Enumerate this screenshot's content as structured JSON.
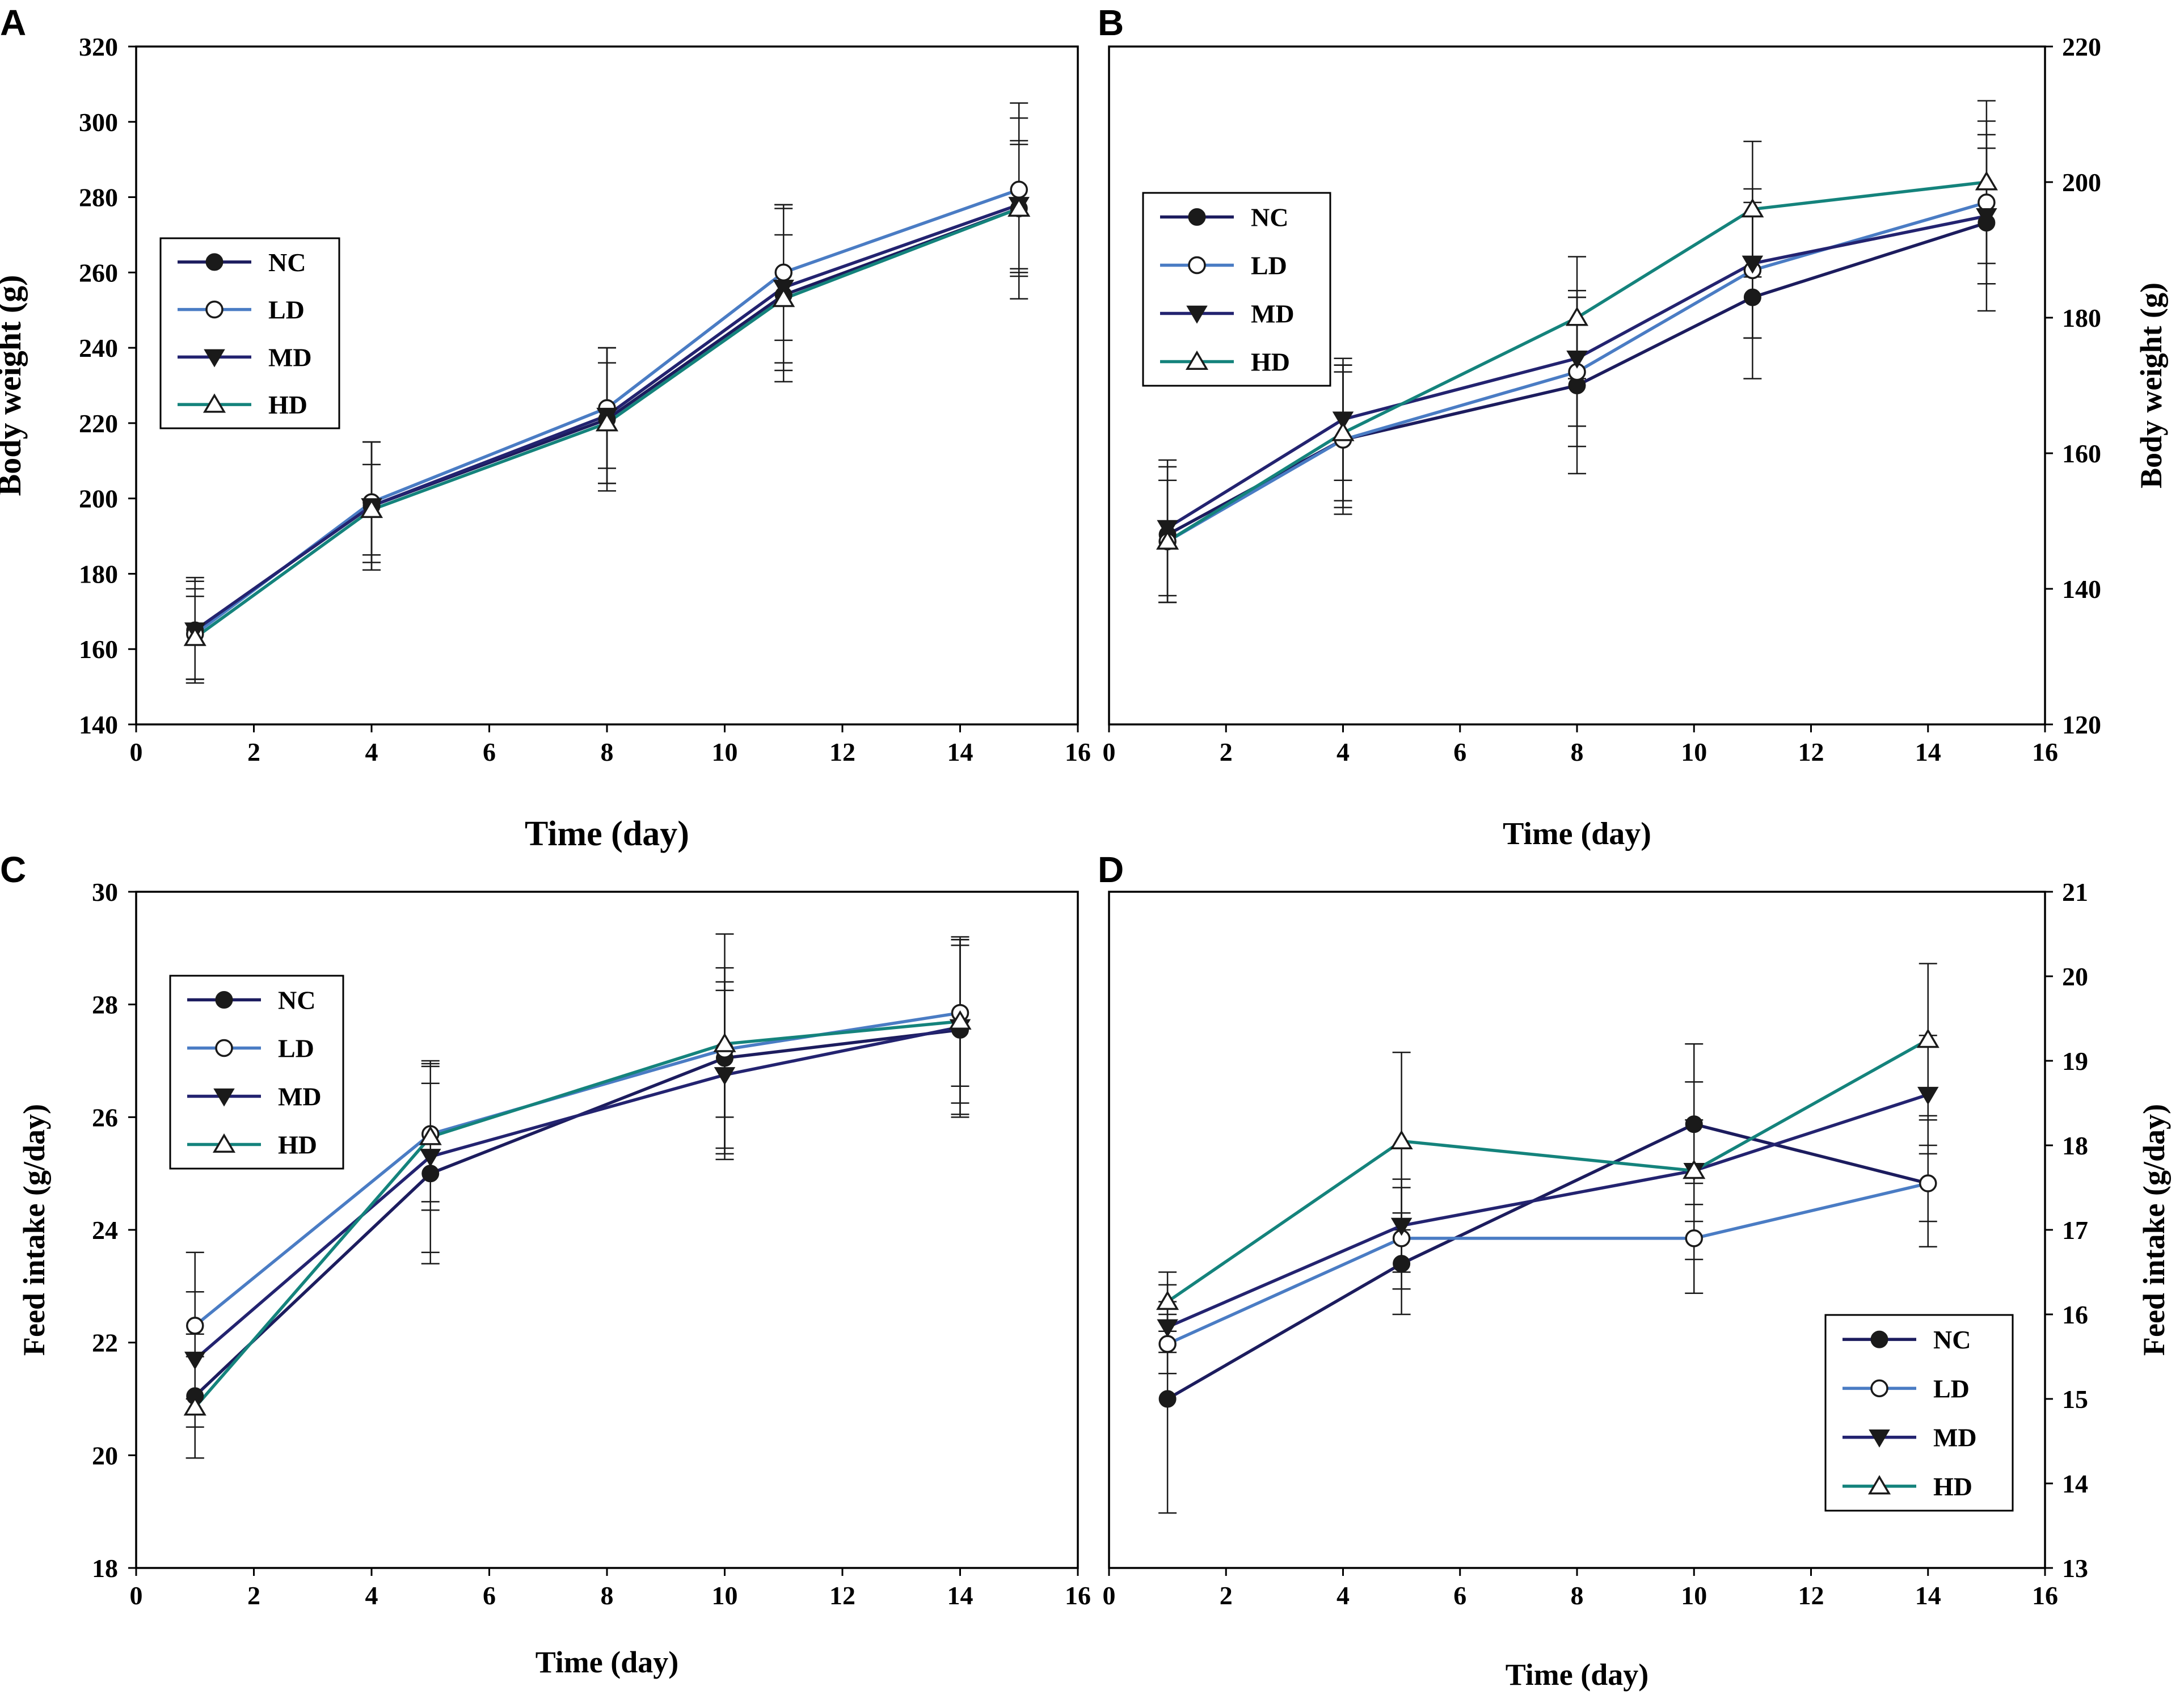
{
  "figure": {
    "colors": {
      "NC": "#1c1c5e",
      "LD": "#4a7cc4",
      "MD": "#232370",
      "HD": "#14837c"
    },
    "markers": {
      "NC": "filled-circle",
      "LD": "open-circle",
      "MD": "filled-triangle-down",
      "HD": "open-triangle-up"
    }
  },
  "chart_data": [
    {
      "panel": "A",
      "type": "line",
      "xlabel": "Time (day)",
      "ylabel": "Body weight (g)",
      "xlim": [
        0,
        16
      ],
      "ylim": [
        140,
        320
      ],
      "xticks": [
        "0",
        "2",
        "4",
        "6",
        "8",
        "10",
        "12",
        "14",
        "16"
      ],
      "yticks": [
        "140",
        "160",
        "180",
        "200",
        "220",
        "240",
        "260",
        "280",
        "300",
        "320"
      ],
      "legend_position": "upper-left",
      "x": [
        1,
        4,
        8,
        11,
        15
      ],
      "series": [
        {
          "name": "NC",
          "values": [
            165,
            198,
            221,
            254,
            277
          ],
          "errors": [
            13,
            17,
            19,
            23,
            24
          ]
        },
        {
          "name": "LD",
          "values": [
            164,
            199,
            224,
            260,
            282
          ],
          "errors": [
            12,
            16,
            16,
            18,
            23
          ]
        },
        {
          "name": "MD",
          "values": [
            165,
            198,
            222,
            256,
            278
          ],
          "errors": [
            14,
            17,
            18,
            22,
            17
          ]
        },
        {
          "name": "HD",
          "values": [
            163,
            197,
            220,
            253,
            277
          ],
          "errors": [
            11,
            12,
            16,
            17,
            17
          ]
        }
      ]
    },
    {
      "panel": "B",
      "type": "line",
      "xlabel": "Time (day)",
      "ylabel": "Body weight (g)",
      "xlim": [
        0,
        16
      ],
      "ylim": [
        120,
        220
      ],
      "xticks": [
        "0",
        "2",
        "4",
        "6",
        "8",
        "10",
        "12",
        "14",
        "16"
      ],
      "yticks": [
        "120",
        "140",
        "160",
        "180",
        "200",
        "220"
      ],
      "legend_position": "upper-left",
      "x": [
        1,
        4,
        8,
        11,
        15
      ],
      "series": [
        {
          "name": "NC",
          "values": [
            148,
            162,
            170,
            183,
            194
          ],
          "errors": [
            10,
            11,
            13,
            12,
            13
          ]
        },
        {
          "name": "LD",
          "values": [
            147,
            162,
            172,
            187,
            197
          ],
          "errors": [
            9,
            10,
            11,
            10,
            12
          ]
        },
        {
          "name": "MD",
          "values": [
            149,
            165,
            174,
            188,
            195
          ],
          "errors": [
            10,
            9,
            10,
            11,
            10
          ]
        },
        {
          "name": "HD",
          "values": [
            147,
            163,
            180,
            196,
            200
          ],
          "errors": [
            9,
            10,
            9,
            10,
            12
          ]
        }
      ]
    },
    {
      "panel": "C",
      "type": "line",
      "xlabel": "Time (day)",
      "ylabel": "Feed intake (g/day)",
      "xlim": [
        0,
        16
      ],
      "ylim": [
        18,
        30
      ],
      "xticks": [
        "0",
        "2",
        "4",
        "6",
        "8",
        "10",
        "12",
        "14",
        "16"
      ],
      "yticks": [
        "18",
        "20",
        "22",
        "24",
        "26",
        "28",
        "30"
      ],
      "legend_position": "upper-left",
      "x": [
        1,
        5,
        10,
        14
      ],
      "series": [
        {
          "name": "NC",
          "values": [
            21.05,
            25.0,
            27.05,
            27.55
          ],
          "errors": [
            1.1,
            1.6,
            1.6,
            1.5
          ]
        },
        {
          "name": "LD",
          "values": [
            22.3,
            25.7,
            27.2,
            27.85
          ],
          "errors": [
            1.3,
            1.2,
            1.2,
            1.3
          ]
        },
        {
          "name": "MD",
          "values": [
            21.7,
            25.3,
            26.75,
            27.6
          ],
          "errors": [
            1.2,
            1.7,
            1.5,
            1.6
          ]
        },
        {
          "name": "HD",
          "values": [
            20.85,
            25.65,
            27.3,
            27.7
          ],
          "errors": [
            0.9,
            1.3,
            1.95,
            1.45
          ]
        }
      ]
    },
    {
      "panel": "D",
      "type": "line",
      "xlabel": "Time (day)",
      "ylabel": "Feed intake (g/day)",
      "xlim": [
        0,
        16
      ],
      "ylim": [
        13,
        21
      ],
      "xticks": [
        "0",
        "2",
        "4",
        "6",
        "8",
        "10",
        "12",
        "14",
        "16"
      ],
      "yticks": [
        "13",
        "14",
        "15",
        "16",
        "17",
        "18",
        "19",
        "20",
        "21"
      ],
      "legend_position": "lower-right",
      "x": [
        1,
        5,
        10,
        14
      ],
      "series": [
        {
          "name": "NC",
          "values": [
            15.0,
            16.6,
            18.25,
            17.55
          ],
          "errors": [
            1.35,
            0.6,
            0.95,
            0.75
          ]
        },
        {
          "name": "LD",
          "values": [
            15.65,
            16.9,
            16.9,
            17.55
          ],
          "errors": [
            0.35,
            0.6,
            0.65,
            0.45
          ]
        },
        {
          "name": "MD",
          "values": [
            15.85,
            17.05,
            17.7,
            18.6
          ],
          "errors": [
            0.3,
            0.55,
            0.6,
            0.7
          ]
        },
        {
          "name": "HD",
          "values": [
            16.15,
            18.05,
            17.7,
            19.25
          ],
          "errors": [
            0.35,
            1.05,
            1.05,
            0.9
          ]
        }
      ]
    }
  ]
}
